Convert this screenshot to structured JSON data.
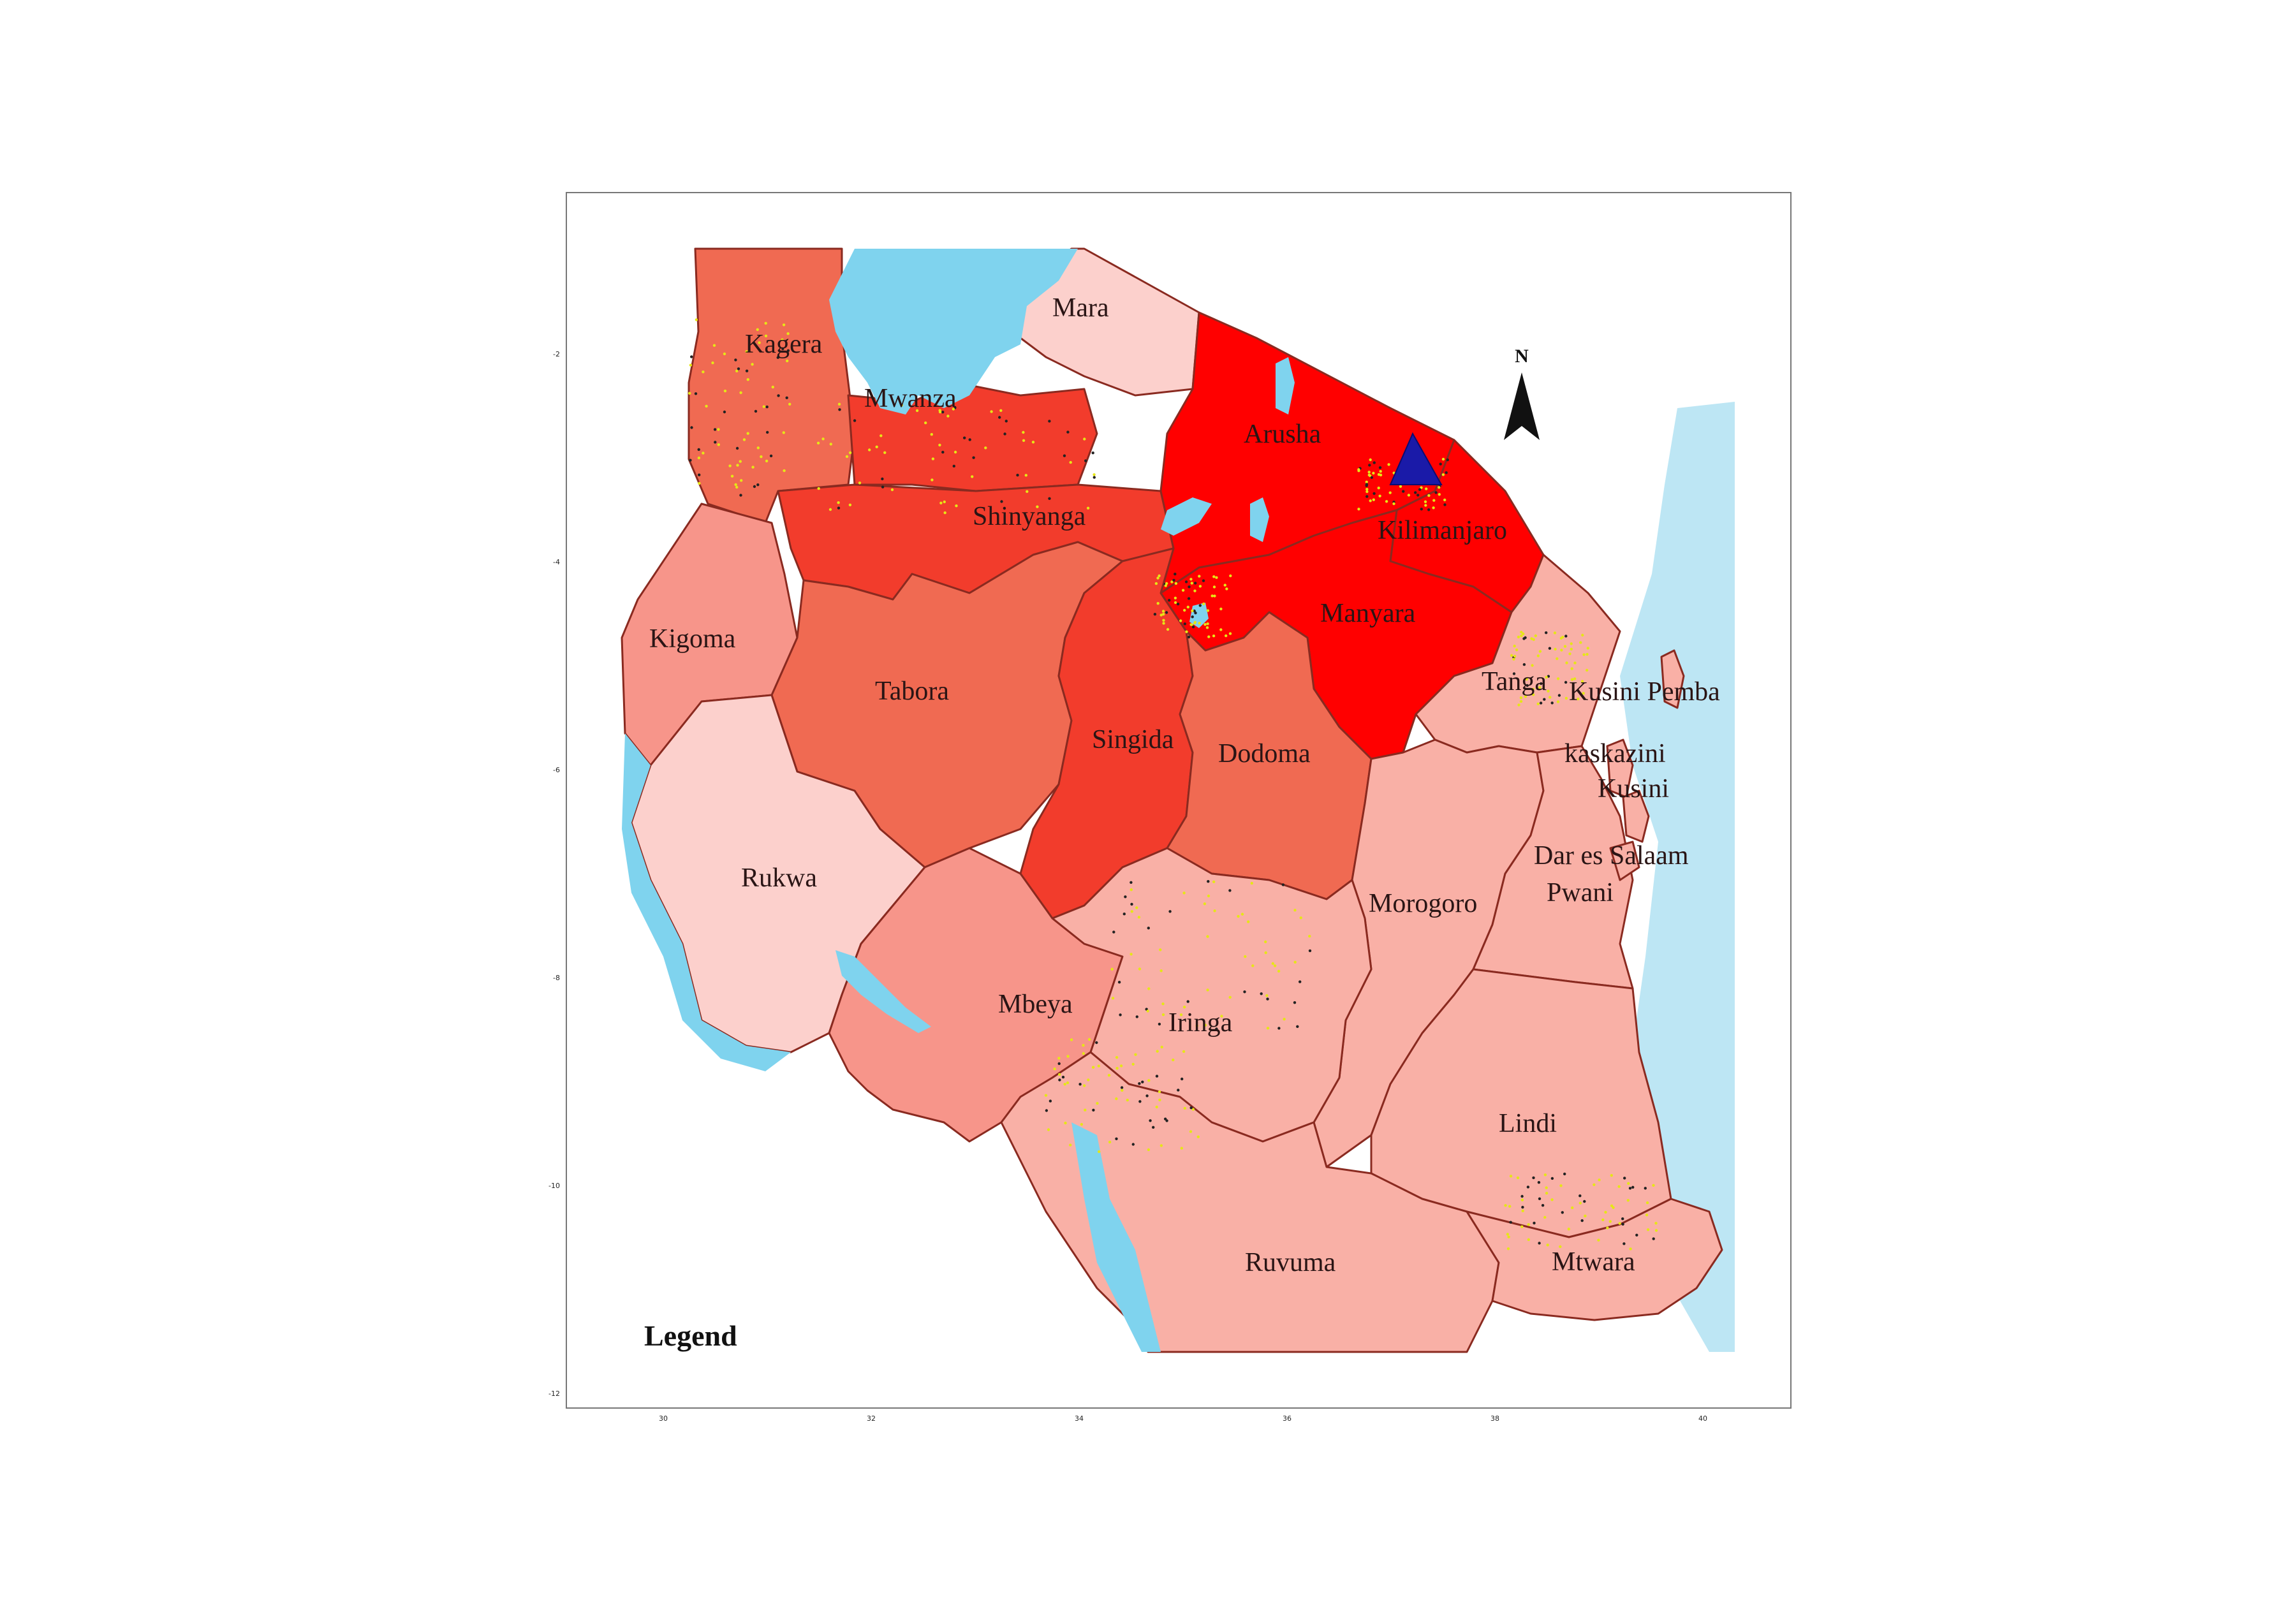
{
  "map": {
    "colors": {
      "water": "#7fd3ee",
      "sea": "#bde6f4",
      "darkest": "#ff0000",
      "dark": "#f23c2c",
      "medium": "#f06a52",
      "light": "#f7958a",
      "lighter": "#f9b0a6",
      "lightest": "#fcd0cc",
      "summit_marker": "#1a1aa8",
      "points": "#e6e617"
    },
    "regions": [
      {
        "id": "kagera",
        "label": "Kagera",
        "level": "medium"
      },
      {
        "id": "mwanza",
        "label": "Mwanza",
        "level": "dark"
      },
      {
        "id": "mara",
        "label": "Mara",
        "level": "lightest"
      },
      {
        "id": "shinyanga",
        "label": "Shinyanga",
        "level": "dark"
      },
      {
        "id": "arusha",
        "label": "Arusha",
        "level": "darkest"
      },
      {
        "id": "kilimanjaro",
        "label": "Kilimanjaro",
        "level": "darkest"
      },
      {
        "id": "manyara",
        "label": "Manyara",
        "level": "darkest"
      },
      {
        "id": "kigoma",
        "label": "Kigoma",
        "level": "light"
      },
      {
        "id": "tabora",
        "label": "Tabora",
        "level": "medium"
      },
      {
        "id": "singida",
        "label": "Singida",
        "level": "dark"
      },
      {
        "id": "dodoma",
        "label": "Dodoma",
        "level": "medium"
      },
      {
        "id": "tanga",
        "label": "Tanga",
        "level": "lighter"
      },
      {
        "id": "kusini-pemba",
        "label": "Kusini Pemba",
        "level": "lighter"
      },
      {
        "id": "kaskazini",
        "label": "kaskazini",
        "level": "lighter"
      },
      {
        "id": "kusini",
        "label": "Kusini",
        "level": "lighter"
      },
      {
        "id": "rukwa",
        "label": "Rukwa",
        "level": "lightest"
      },
      {
        "id": "morogoro",
        "label": "Morogoro",
        "level": "lighter"
      },
      {
        "id": "dar-es-salaam",
        "label": "Dar es Salaam",
        "level": "lighter"
      },
      {
        "id": "pwani",
        "label": "Pwani",
        "level": "lighter"
      },
      {
        "id": "mbeya",
        "label": "Mbeya",
        "level": "light"
      },
      {
        "id": "iringa",
        "label": "Iringa",
        "level": "lighter"
      },
      {
        "id": "lindi",
        "label": "Lindi",
        "level": "lighter"
      },
      {
        "id": "ruvuma",
        "label": "Ruvuma",
        "level": "lighter"
      },
      {
        "id": "mtwara",
        "label": "Mtwara",
        "level": "lighter"
      }
    ],
    "legend_title": "Legend",
    "north_label": "N",
    "x_ticks": [
      "30",
      "32",
      "34",
      "36",
      "38",
      "40"
    ],
    "y_ticks": [
      "-2",
      "-4",
      "-6",
      "-8",
      "-10",
      "-12"
    ]
  }
}
